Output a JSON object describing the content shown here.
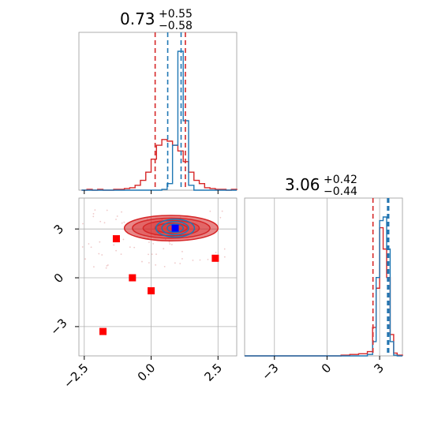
{
  "chart_data": {
    "type": "corner",
    "colors": {
      "posterior_a": "#d62728",
      "posterior_b": "#1f77b4",
      "points": "#ff0000",
      "truth": "#0000ff",
      "grid": "#b0b0b0"
    },
    "parameters": [
      {
        "name": "param_1",
        "title_value": "0.73",
        "title_plus": "+0.55",
        "title_minus": "−0.58",
        "xlim": [
          -2.7,
          3.2
        ],
        "xticks": [
          -2.5,
          0.0,
          2.5
        ],
        "xtick_labels": [
          "−2.5",
          "0.0",
          "2.5"
        ]
      },
      {
        "name": "param_2",
        "title_value": "3.06",
        "title_plus": "+0.42",
        "title_minus": "−0.44",
        "xlim": [
          -4.7,
          4.3
        ],
        "xticks": [
          -3,
          0,
          3
        ],
        "xtick_labels": [
          "−3",
          "0",
          "3"
        ]
      }
    ],
    "joint_ylim": [
      -4.8,
      4.9
    ],
    "joint_yticks": [
      -3,
      0,
      3
    ],
    "joint_ytick_labels": [
      "−3",
      "0",
      "3"
    ],
    "quantiles": {
      "param_1": {
        "red": [
          0.15,
          1.28
        ],
        "blue": [
          0.62,
          1.12
        ]
      },
      "param_2": {
        "red": [
          2.62,
          3.48
        ],
        "blue": [
          3.45,
          3.52
        ]
      }
    },
    "hist_param_1": {
      "bins": [
        -2.6,
        -2.4,
        -2.2,
        -2.0,
        -1.8,
        -1.6,
        -1.4,
        -1.2,
        -1.0,
        -0.8,
        -0.6,
        -0.4,
        -0.2,
        0.0,
        0.2,
        0.4,
        0.6,
        0.8,
        1.0,
        1.2,
        1.4,
        1.6,
        1.8,
        2.0,
        2.2,
        2.4,
        2.6,
        2.8,
        3.0,
        3.2
      ],
      "red": [
        0,
        1,
        0,
        1,
        0,
        0,
        1,
        1,
        2,
        3,
        6,
        12,
        22,
        38,
        55,
        62,
        60,
        55,
        48,
        35,
        22,
        12,
        8,
        3,
        2,
        1,
        1,
        0,
        1
      ],
      "blue": [
        0,
        0,
        0,
        0,
        0,
        0,
        0,
        0,
        0,
        0,
        0,
        0,
        0,
        0,
        0,
        1,
        8,
        55,
        170,
        85,
        6,
        0,
        0,
        0,
        0,
        0,
        0,
        0,
        0
      ]
    },
    "hist_param_2": {
      "bins": [
        -4.7,
        -4.2,
        -3.7,
        -3.2,
        -2.7,
        -2.2,
        -1.7,
        -1.2,
        -0.7,
        -0.2,
        0.3,
        0.8,
        1.3,
        1.8,
        2.3,
        2.6,
        2.8,
        3.0,
        3.2,
        3.4,
        3.6,
        3.8,
        4.0,
        4.3
      ],
      "red": [
        0,
        0,
        0,
        0,
        0,
        0,
        0,
        0,
        0,
        0,
        0,
        1,
        2,
        3,
        6,
        40,
        95,
        180,
        150,
        110,
        30,
        4,
        1
      ],
      "blue": [
        0,
        0,
        0,
        0,
        0,
        0,
        0,
        0,
        0,
        0,
        0,
        0,
        0,
        0,
        2,
        20,
        110,
        190,
        195,
        150,
        20,
        1,
        0
      ]
    },
    "marked_points": [
      {
        "x": -1.3,
        "y": 2.4
      },
      {
        "x": -0.7,
        "y": 0.0
      },
      {
        "x": 0.0,
        "y": -0.8
      },
      {
        "x": -1.8,
        "y": -3.3
      },
      {
        "x": 2.4,
        "y": 1.2
      }
    ],
    "truth_point": {
      "x": 0.9,
      "y": 3.05
    }
  }
}
